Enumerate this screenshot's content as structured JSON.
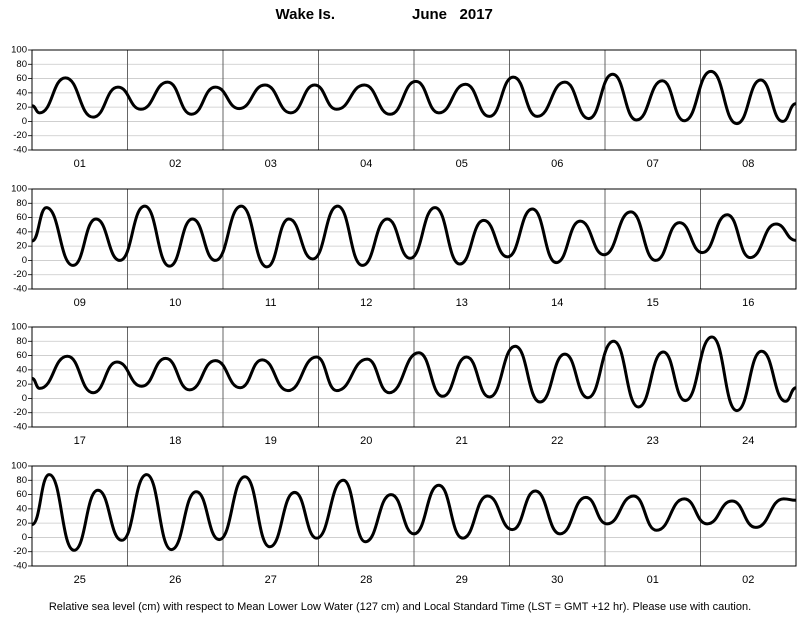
{
  "title_station": "Wake Is.",
  "title_month": "June   2017",
  "footer": "Relative sea level (cm) with respect to Mean Lower Low Water (127 cm) and Local Standard Time (LST = GMT +12 hr). Please use with caution.",
  "chart_data": [
    {
      "type": "line",
      "categories": [
        "01",
        "02",
        "03",
        "04",
        "05",
        "06",
        "07",
        "08"
      ],
      "xlim": [
        0,
        8
      ],
      "ylim": [
        -40,
        100
      ],
      "yticks": [
        -40,
        -20,
        0,
        20,
        40,
        60,
        80,
        100
      ],
      "grid": true,
      "x": [
        0,
        0.08,
        0.35,
        0.64,
        0.9,
        1.14,
        1.42,
        1.67,
        1.92,
        2.17,
        2.44,
        2.71,
        2.96,
        3.19,
        3.48,
        3.75,
        4.02,
        4.26,
        4.54,
        4.79,
        5.04,
        5.29,
        5.58,
        5.83,
        6.08,
        6.33,
        6.6,
        6.83,
        7.11,
        7.38,
        7.63,
        7.86,
        8
      ],
      "series": [
        {
          "color": "#000000",
          "values": [
            22,
            12,
            61,
            6,
            48,
            17,
            55,
            10,
            48,
            18,
            51,
            12,
            51,
            17,
            51,
            10,
            56,
            12,
            52,
            7,
            62,
            7,
            55,
            4,
            66,
            2,
            57,
            1,
            70,
            -3,
            58,
            0,
            25
          ]
        }
      ]
    },
    {
      "type": "line",
      "categories": [
        "09",
        "10",
        "11",
        "12",
        "13",
        "14",
        "15",
        "16"
      ],
      "xlim": [
        0,
        8
      ],
      "ylim": [
        -40,
        100
      ],
      "yticks": [
        -40,
        -20,
        0,
        20,
        40,
        60,
        80,
        100
      ],
      "grid": true,
      "x": [
        0,
        0.15,
        0.43,
        0.67,
        0.92,
        1.18,
        1.44,
        1.68,
        1.92,
        2.19,
        2.46,
        2.69,
        2.94,
        3.2,
        3.46,
        3.72,
        3.96,
        4.22,
        4.48,
        4.73,
        4.98,
        5.24,
        5.49,
        5.74,
        5.99,
        6.27,
        6.53,
        6.78,
        7.02,
        7.28,
        7.52,
        7.79,
        8
      ],
      "series": [
        {
          "color": "#000000",
          "values": [
            27,
            74,
            -7,
            58,
            0,
            76,
            -8,
            58,
            0,
            76,
            -9,
            58,
            2,
            76,
            -7,
            58,
            3,
            74,
            -5,
            56,
            5,
            72,
            -3,
            55,
            8,
            68,
            0,
            53,
            11,
            64,
            4,
            51,
            28
          ]
        }
      ]
    },
    {
      "type": "line",
      "categories": [
        "17",
        "18",
        "19",
        "20",
        "21",
        "22",
        "23",
        "24"
      ],
      "xlim": [
        0,
        8
      ],
      "ylim": [
        -40,
        100
      ],
      "yticks": [
        -40,
        -20,
        0,
        20,
        40,
        60,
        80,
        100
      ],
      "grid": true,
      "x": [
        0,
        0.08,
        0.37,
        0.64,
        0.89,
        1.15,
        1.4,
        1.65,
        1.92,
        2.18,
        2.41,
        2.68,
        2.98,
        3.19,
        3.51,
        3.74,
        4.05,
        4.3,
        4.55,
        4.79,
        5.06,
        5.32,
        5.58,
        5.82,
        6.09,
        6.35,
        6.61,
        6.84,
        7.12,
        7.38,
        7.64,
        7.89,
        8
      ],
      "series": [
        {
          "color": "#000000",
          "values": [
            28,
            14,
            59,
            8,
            51,
            17,
            56,
            12,
            53,
            15,
            54,
            11,
            58,
            11,
            55,
            8,
            64,
            3,
            58,
            2,
            73,
            -5,
            62,
            1,
            80,
            -12,
            65,
            -3,
            86,
            -17,
            66,
            -4,
            15
          ]
        }
      ]
    },
    {
      "type": "line",
      "categories": [
        "25",
        "26",
        "27",
        "28",
        "29",
        "30",
        "01",
        "02"
      ],
      "xlim": [
        0,
        8
      ],
      "ylim": [
        -40,
        100
      ],
      "yticks": [
        -40,
        -20,
        0,
        20,
        40,
        60,
        80,
        100
      ],
      "grid": true,
      "x": [
        0,
        0.18,
        0.44,
        0.69,
        0.94,
        1.2,
        1.46,
        1.72,
        1.96,
        2.23,
        2.49,
        2.75,
        2.98,
        3.26,
        3.49,
        3.76,
        4.0,
        4.26,
        4.51,
        4.77,
        5.03,
        5.27,
        5.53,
        5.8,
        6.02,
        6.3,
        6.54,
        6.83,
        7.07,
        7.33,
        7.58,
        7.87,
        8
      ],
      "series": [
        {
          "color": "#000000",
          "values": [
            18,
            88,
            -18,
            66,
            -4,
            88,
            -17,
            64,
            -3,
            85,
            -13,
            63,
            -1,
            80,
            -6,
            60,
            5,
            73,
            -1,
            58,
            11,
            65,
            5,
            56,
            19,
            58,
            10,
            54,
            19,
            51,
            14,
            54,
            52
          ]
        }
      ]
    }
  ]
}
